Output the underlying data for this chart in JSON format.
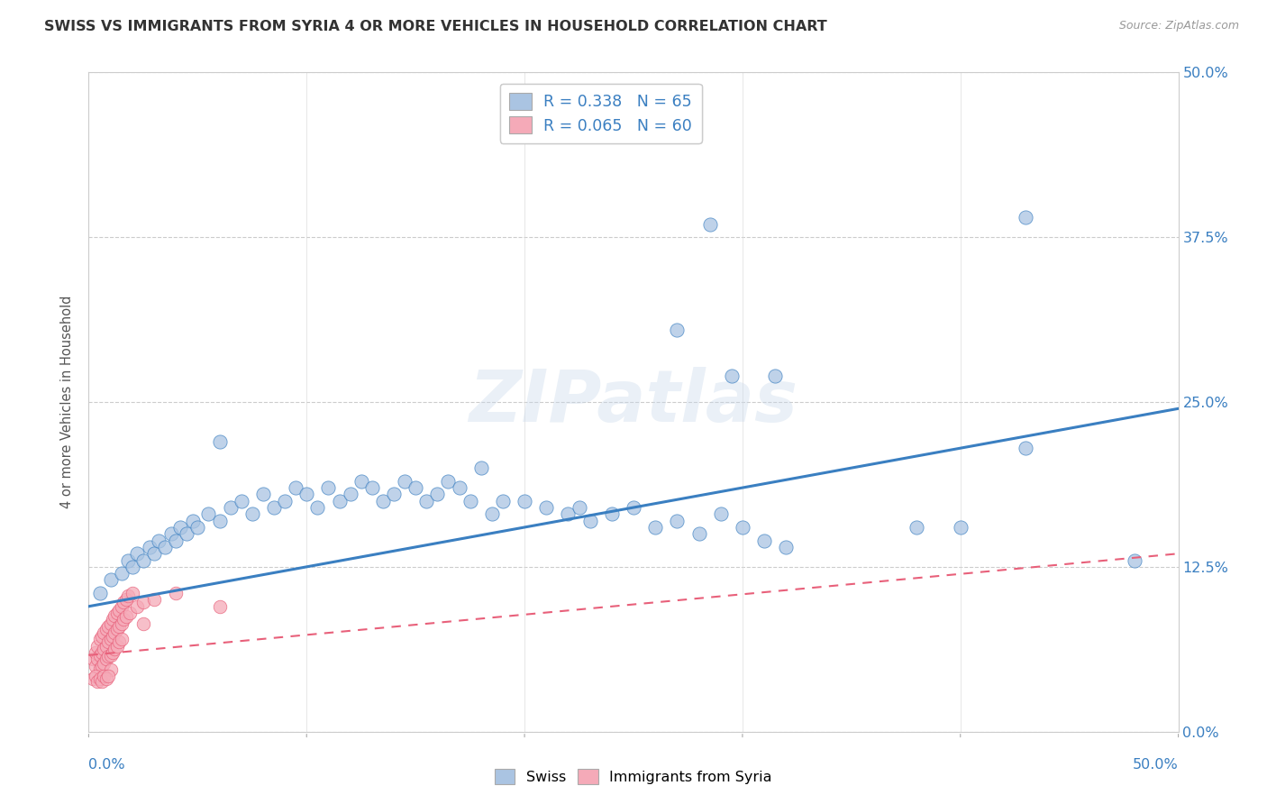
{
  "title": "SWISS VS IMMIGRANTS FROM SYRIA 4 OR MORE VEHICLES IN HOUSEHOLD CORRELATION CHART",
  "source": "Source: ZipAtlas.com",
  "ylabel": "4 or more Vehicles in Household",
  "ytick_values": [
    0.0,
    0.125,
    0.25,
    0.375,
    0.5
  ],
  "ytick_labels": [
    "0.0%",
    "12.5%",
    "25.0%",
    "37.5%",
    "50.0%"
  ],
  "xlim": [
    0.0,
    0.5
  ],
  "ylim": [
    0.0,
    0.5
  ],
  "watermark": "ZIPatlas",
  "legend_swiss_R": "0.338",
  "legend_swiss_N": "65",
  "legend_syria_R": "0.065",
  "legend_syria_N": "60",
  "swiss_color": "#aac4e2",
  "syria_color": "#f5aab8",
  "swiss_line_color": "#3a7fc1",
  "syria_line_color": "#e8607a",
  "background_color": "#ffffff",
  "grid_color": "#cccccc",
  "swiss_points": [
    [
      0.005,
      0.105
    ],
    [
      0.01,
      0.115
    ],
    [
      0.015,
      0.12
    ],
    [
      0.018,
      0.13
    ],
    [
      0.02,
      0.125
    ],
    [
      0.022,
      0.135
    ],
    [
      0.025,
      0.13
    ],
    [
      0.028,
      0.14
    ],
    [
      0.03,
      0.135
    ],
    [
      0.032,
      0.145
    ],
    [
      0.035,
      0.14
    ],
    [
      0.038,
      0.15
    ],
    [
      0.04,
      0.145
    ],
    [
      0.042,
      0.155
    ],
    [
      0.045,
      0.15
    ],
    [
      0.048,
      0.16
    ],
    [
      0.05,
      0.155
    ],
    [
      0.055,
      0.165
    ],
    [
      0.06,
      0.16
    ],
    [
      0.06,
      0.22
    ],
    [
      0.065,
      0.17
    ],
    [
      0.07,
      0.175
    ],
    [
      0.075,
      0.165
    ],
    [
      0.08,
      0.18
    ],
    [
      0.085,
      0.17
    ],
    [
      0.09,
      0.175
    ],
    [
      0.095,
      0.185
    ],
    [
      0.1,
      0.18
    ],
    [
      0.105,
      0.17
    ],
    [
      0.11,
      0.185
    ],
    [
      0.115,
      0.175
    ],
    [
      0.12,
      0.18
    ],
    [
      0.125,
      0.19
    ],
    [
      0.13,
      0.185
    ],
    [
      0.135,
      0.175
    ],
    [
      0.14,
      0.18
    ],
    [
      0.145,
      0.19
    ],
    [
      0.15,
      0.185
    ],
    [
      0.155,
      0.175
    ],
    [
      0.16,
      0.18
    ],
    [
      0.165,
      0.19
    ],
    [
      0.17,
      0.185
    ],
    [
      0.175,
      0.175
    ],
    [
      0.18,
      0.2
    ],
    [
      0.185,
      0.165
    ],
    [
      0.19,
      0.175
    ],
    [
      0.2,
      0.175
    ],
    [
      0.21,
      0.17
    ],
    [
      0.22,
      0.165
    ],
    [
      0.225,
      0.17
    ],
    [
      0.23,
      0.16
    ],
    [
      0.24,
      0.165
    ],
    [
      0.25,
      0.17
    ],
    [
      0.26,
      0.155
    ],
    [
      0.27,
      0.16
    ],
    [
      0.28,
      0.15
    ],
    [
      0.29,
      0.165
    ],
    [
      0.3,
      0.155
    ],
    [
      0.31,
      0.145
    ],
    [
      0.32,
      0.14
    ],
    [
      0.38,
      0.155
    ],
    [
      0.4,
      0.155
    ],
    [
      0.43,
      0.215
    ],
    [
      0.48,
      0.13
    ],
    [
      0.295,
      0.27
    ]
  ],
  "swiss_outliers": [
    [
      0.285,
      0.385
    ],
    [
      0.43,
      0.39
    ],
    [
      0.315,
      0.27
    ],
    [
      0.27,
      0.305
    ]
  ],
  "syria_points": [
    [
      0.002,
      0.055
    ],
    [
      0.003,
      0.06
    ],
    [
      0.003,
      0.05
    ],
    [
      0.004,
      0.065
    ],
    [
      0.004,
      0.055
    ],
    [
      0.005,
      0.07
    ],
    [
      0.005,
      0.058
    ],
    [
      0.005,
      0.048
    ],
    [
      0.006,
      0.072
    ],
    [
      0.006,
      0.06
    ],
    [
      0.006,
      0.05
    ],
    [
      0.007,
      0.075
    ],
    [
      0.007,
      0.063
    ],
    [
      0.007,
      0.052
    ],
    [
      0.008,
      0.078
    ],
    [
      0.008,
      0.065
    ],
    [
      0.008,
      0.055
    ],
    [
      0.009,
      0.08
    ],
    [
      0.009,
      0.068
    ],
    [
      0.009,
      0.057
    ],
    [
      0.01,
      0.082
    ],
    [
      0.01,
      0.07
    ],
    [
      0.01,
      0.058
    ],
    [
      0.01,
      0.047
    ],
    [
      0.011,
      0.085
    ],
    [
      0.011,
      0.072
    ],
    [
      0.011,
      0.06
    ],
    [
      0.012,
      0.088
    ],
    [
      0.012,
      0.075
    ],
    [
      0.012,
      0.063
    ],
    [
      0.013,
      0.09
    ],
    [
      0.013,
      0.078
    ],
    [
      0.013,
      0.065
    ],
    [
      0.014,
      0.092
    ],
    [
      0.014,
      0.08
    ],
    [
      0.014,
      0.068
    ],
    [
      0.015,
      0.095
    ],
    [
      0.015,
      0.082
    ],
    [
      0.015,
      0.07
    ],
    [
      0.016,
      0.098
    ],
    [
      0.016,
      0.085
    ],
    [
      0.017,
      0.1
    ],
    [
      0.017,
      0.087
    ],
    [
      0.018,
      0.103
    ],
    [
      0.019,
      0.09
    ],
    [
      0.02,
      0.105
    ],
    [
      0.022,
      0.095
    ],
    [
      0.025,
      0.098
    ],
    [
      0.03,
      0.1
    ],
    [
      0.04,
      0.105
    ],
    [
      0.002,
      0.04
    ],
    [
      0.003,
      0.042
    ],
    [
      0.004,
      0.038
    ],
    [
      0.005,
      0.04
    ],
    [
      0.006,
      0.038
    ],
    [
      0.007,
      0.042
    ],
    [
      0.008,
      0.04
    ],
    [
      0.009,
      0.042
    ],
    [
      0.025,
      0.082
    ],
    [
      0.06,
      0.095
    ]
  ]
}
